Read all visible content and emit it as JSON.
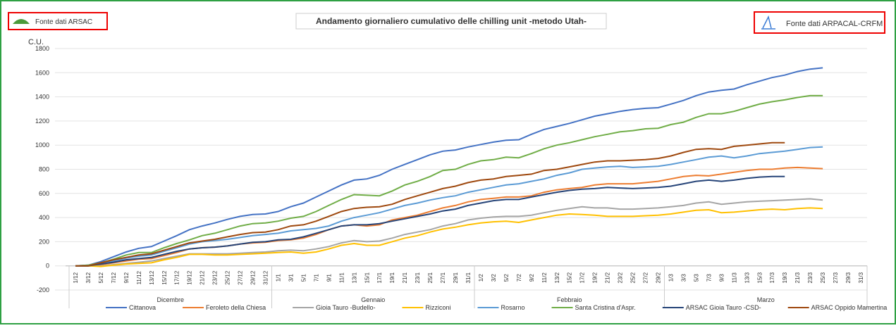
{
  "header": {
    "left_source": "Fonte dati ARSAC",
    "right_source": "Fonte dati ARPACAL-CRFM"
  },
  "chart_data": {
    "type": "line",
    "title": "Andamento giornaliero cumulativo delle chilling unit -metodo Utah-",
    "y_label": "C.U.",
    "categories": [
      "1/12",
      "3/12",
      "5/12",
      "7/12",
      "9/12",
      "11/12",
      "13/12",
      "15/12",
      "17/12",
      "19/12",
      "21/12",
      "23/12",
      "25/12",
      "27/12",
      "29/12",
      "31/12",
      "1/1",
      "3/1",
      "5/1",
      "7/1",
      "9/1",
      "11/1",
      "13/1",
      "15/1",
      "17/1",
      "19/1",
      "21/1",
      "23/1",
      "25/1",
      "27/1",
      "29/1",
      "31/1",
      "1/2",
      "3/2",
      "5/2",
      "7/2",
      "9/2",
      "11/2",
      "13/2",
      "15/2",
      "17/2",
      "19/2",
      "21/2",
      "23/2",
      "25/2",
      "27/2",
      "29/2",
      "1/3",
      "3/3",
      "5/3",
      "7/3",
      "9/3",
      "11/3",
      "13/3",
      "15/3",
      "17/3",
      "19/3",
      "21/3",
      "23/3",
      "25/3",
      "27/3",
      "29/3",
      "31/3"
    ],
    "groups": [
      "Dicembre",
      "Gennaio",
      "Febbraio",
      "Marzo"
    ],
    "ylim": [
      -200,
      1800
    ],
    "yticks": [
      -200,
      0,
      200,
      400,
      600,
      800,
      1000,
      1200,
      1400,
      1600,
      1800
    ],
    "grid": true,
    "series": [
      {
        "name": "Cittanova",
        "color": "#4472c4",
        "values": [
          0,
          5,
          35,
          75,
          115,
          145,
          160,
          205,
          250,
          300,
          330,
          355,
          385,
          410,
          425,
          430,
          450,
          490,
          520,
          570,
          620,
          670,
          710,
          720,
          750,
          800,
          840,
          880,
          920,
          950,
          960,
          985,
          1005,
          1025,
          1040,
          1045,
          1090,
          1130,
          1155,
          1180,
          1210,
          1240,
          1260,
          1280,
          1295,
          1305,
          1310,
          1340,
          1370,
          1410,
          1440,
          1455,
          1465,
          1500,
          1530,
          1560,
          1580,
          1610,
          1630,
          1640,
          null,
          null,
          null
        ]
      },
      {
        "name": "Feroleto della Chiesa",
        "color": "#ed7d31",
        "values": [
          0,
          0,
          10,
          25,
          40,
          55,
          60,
          85,
          110,
          140,
          150,
          155,
          165,
          180,
          190,
          195,
          210,
          215,
          230,
          260,
          300,
          330,
          340,
          330,
          340,
          380,
          400,
          420,
          450,
          480,
          500,
          530,
          550,
          560,
          570,
          570,
          580,
          610,
          630,
          640,
          650,
          670,
          680,
          680,
          680,
          690,
          700,
          720,
          740,
          750,
          745,
          760,
          775,
          790,
          800,
          800,
          810,
          815,
          810,
          805,
          null,
          null,
          null
        ]
      },
      {
        "name": "Gioia Tauro -Budello-",
        "color": "#a5a5a5",
        "values": [
          0,
          0,
          0,
          10,
          20,
          30,
          40,
          60,
          80,
          100,
          100,
          100,
          100,
          105,
          110,
          115,
          125,
          130,
          125,
          140,
          160,
          190,
          210,
          200,
          205,
          230,
          260,
          280,
          300,
          330,
          350,
          380,
          395,
          405,
          410,
          410,
          420,
          440,
          460,
          475,
          490,
          480,
          480,
          470,
          470,
          475,
          480,
          490,
          500,
          520,
          530,
          510,
          520,
          530,
          535,
          540,
          545,
          550,
          555,
          545,
          null,
          null,
          null
        ]
      },
      {
        "name": "Rizziconi",
        "color": "#ffc000",
        "values": [
          0,
          0,
          -5,
          5,
          15,
          20,
          25,
          50,
          70,
          95,
          95,
          90,
          90,
          95,
          100,
          105,
          110,
          115,
          105,
          115,
          140,
          170,
          185,
          170,
          170,
          200,
          230,
          250,
          280,
          305,
          320,
          340,
          355,
          365,
          370,
          360,
          380,
          400,
          420,
          430,
          425,
          420,
          410,
          410,
          410,
          415,
          420,
          430,
          445,
          460,
          465,
          440,
          445,
          455,
          465,
          470,
          465,
          475,
          480,
          475,
          null,
          null,
          null
        ]
      },
      {
        "name": "Rosarno",
        "color": "#5b9bd5",
        "values": [
          0,
          0,
          20,
          40,
          65,
          80,
          90,
          120,
          150,
          180,
          200,
          210,
          220,
          235,
          250,
          260,
          270,
          290,
          300,
          310,
          330,
          370,
          400,
          420,
          440,
          470,
          500,
          520,
          545,
          565,
          580,
          610,
          630,
          650,
          670,
          680,
          700,
          720,
          750,
          770,
          800,
          810,
          820,
          825,
          815,
          820,
          825,
          840,
          860,
          880,
          900,
          910,
          895,
          910,
          930,
          940,
          950,
          965,
          980,
          985,
          null,
          null,
          null
        ]
      },
      {
        "name": "Santa Cristina d'Aspr.",
        "color": "#70ad47",
        "values": [
          0,
          5,
          25,
          55,
          90,
          110,
          110,
          150,
          185,
          215,
          250,
          270,
          300,
          330,
          350,
          355,
          370,
          395,
          410,
          450,
          500,
          550,
          590,
          585,
          580,
          620,
          670,
          700,
          740,
          790,
          800,
          840,
          870,
          880,
          900,
          895,
          930,
          970,
          1000,
          1020,
          1045,
          1070,
          1090,
          1110,
          1120,
          1135,
          1140,
          1170,
          1190,
          1230,
          1260,
          1260,
          1280,
          1310,
          1340,
          1360,
          1375,
          1395,
          1410,
          1410,
          null,
          null,
          null
        ]
      },
      {
        "name": "ARSAC Gioia Tauro -CSD-",
        "color": "#264478",
        "values": [
          0,
          0,
          15,
          30,
          50,
          60,
          70,
          95,
          120,
          140,
          150,
          155,
          165,
          180,
          195,
          200,
          215,
          220,
          240,
          270,
          300,
          330,
          340,
          340,
          350,
          370,
          390,
          410,
          430,
          455,
          470,
          500,
          520,
          540,
          550,
          550,
          570,
          590,
          610,
          625,
          635,
          640,
          650,
          645,
          640,
          645,
          650,
          660,
          680,
          700,
          710,
          700,
          710,
          725,
          735,
          740,
          740,
          null,
          null,
          null,
          null,
          null,
          null
        ]
      },
      {
        "name": "ARSAC Oppido Mamertina",
        "color": "#9e480e",
        "values": [
          0,
          0,
          25,
          50,
          70,
          90,
          100,
          130,
          160,
          190,
          205,
          220,
          240,
          260,
          275,
          280,
          300,
          330,
          340,
          370,
          410,
          450,
          475,
          485,
          490,
          510,
          550,
          580,
          610,
          640,
          660,
          690,
          710,
          720,
          740,
          750,
          760,
          790,
          800,
          820,
          840,
          860,
          870,
          870,
          875,
          880,
          890,
          910,
          940,
          965,
          970,
          965,
          990,
          1000,
          1010,
          1020,
          1020,
          null,
          null,
          null,
          null,
          null,
          null
        ]
      }
    ]
  }
}
